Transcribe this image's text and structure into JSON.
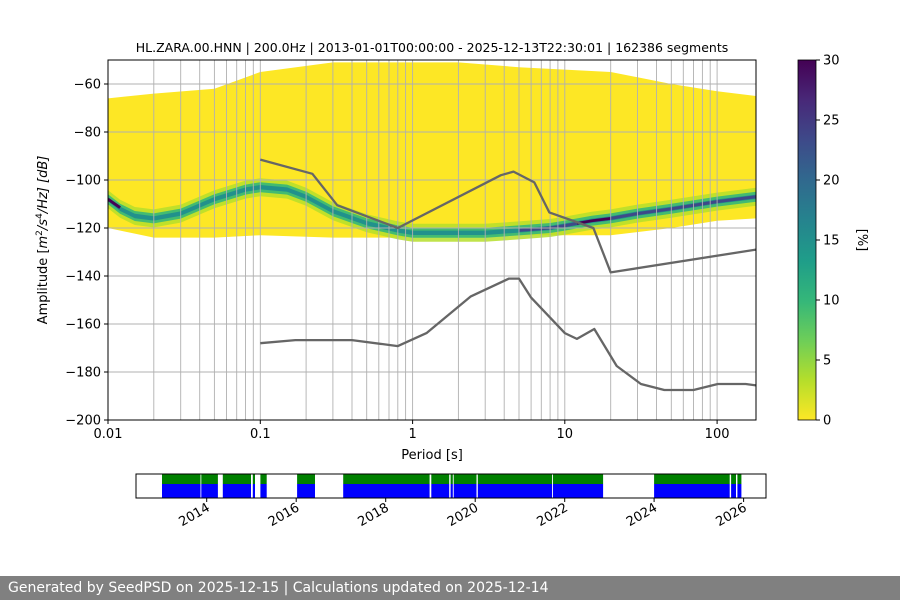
{
  "chart_data": [
    {
      "type": "heatmap",
      "title": "HL.ZARA.00.HNN | 200.0Hz | 2013-01-01T00:00:00 - 2025-12-13T22:30:01 | 162386 segments",
      "xlabel": "Period [s]",
      "ylabel": "Amplitude [m²/s⁴/Hz] [dB]",
      "ylabel_parts": {
        "pre": "Amplitude [",
        "m": "m",
        "two": "2",
        "s": "/s",
        "four": "4",
        "hz": "/Hz] [dB]"
      },
      "x_scale": "log",
      "xlim": [
        0.01,
        180
      ],
      "ylim": [
        -200,
        -50
      ],
      "x_ticks": [
        {
          "value": 0.01,
          "label": "0.01"
        },
        {
          "value": 0.1,
          "label": "0.1"
        },
        {
          "value": 1,
          "label": "1"
        },
        {
          "value": 10,
          "label": "10"
        },
        {
          "value": 100,
          "label": "100"
        }
      ],
      "y_ticks": [
        {
          "value": -60,
          "label": "−60"
        },
        {
          "value": -80,
          "label": "−80"
        },
        {
          "value": -100,
          "label": "−100"
        },
        {
          "value": -120,
          "label": "−120"
        },
        {
          "value": -140,
          "label": "−140"
        },
        {
          "value": -160,
          "label": "−160"
        },
        {
          "value": -180,
          "label": "−180"
        },
        {
          "value": -200,
          "label": "−200"
        }
      ],
      "grid_periods": [
        0.02,
        0.03,
        0.04,
        0.05,
        0.06,
        0.07,
        0.08,
        0.09,
        0.1,
        0.2,
        0.3,
        0.4,
        0.5,
        0.6,
        0.7,
        0.8,
        0.9,
        1,
        2,
        3,
        4,
        5,
        6,
        7,
        8,
        9,
        10,
        20,
        30,
        40,
        50,
        60,
        70,
        80,
        90,
        100
      ],
      "density_envelope": {
        "periods": [
          0.01,
          0.02,
          0.05,
          0.1,
          0.3,
          0.8,
          2,
          5,
          10,
          20,
          50,
          100,
          180
        ],
        "upper_db": [
          -66,
          -64,
          -62,
          -55,
          -51,
          -51,
          -51,
          -53,
          -54,
          -55,
          -60,
          -63,
          -65
        ],
        "lower_db": [
          -120,
          -124,
          -124,
          -123,
          -124,
          -124,
          -123,
          -123,
          -123,
          -123,
          -120,
          -117,
          -116
        ]
      },
      "mode_curve": {
        "periods": [
          0.01,
          0.012,
          0.015,
          0.02,
          0.03,
          0.05,
          0.08,
          0.1,
          0.15,
          0.2,
          0.3,
          0.5,
          0.8,
          1,
          2,
          3,
          5,
          8,
          10,
          15,
          20,
          30,
          50,
          100,
          180
        ],
        "db": [
          -108,
          -112,
          -115,
          -116,
          -114,
          -108,
          -104,
          -103,
          -104,
          -107,
          -113,
          -118,
          -121,
          -122,
          -122,
          -122,
          -121,
          -120,
          -119,
          -117,
          -116,
          -114,
          -112,
          -109,
          -107
        ]
      },
      "colorbar": {
        "label": "[%]",
        "min": 0,
        "max": 30,
        "ticks": [
          0,
          5,
          10,
          15,
          20,
          25,
          30
        ],
        "colors": [
          "#fde725",
          "#b5de2b",
          "#6ece58",
          "#35b779",
          "#1f9e89",
          "#26828e",
          "#31688e",
          "#3e4989",
          "#482878",
          "#440154"
        ]
      },
      "noise_models": [
        {
          "name": "high",
          "periods": [
            0.1,
            0.22,
            0.32,
            0.8,
            3.8,
            4.6,
            6.3,
            7.9,
            15.4,
            20,
            180
          ],
          "db": [
            -91.5,
            -97.4,
            -110.5,
            -120,
            -98,
            -96.5,
            -101,
            -113.5,
            -120,
            -138.5,
            -129
          ]
        },
        {
          "name": "low",
          "periods": [
            0.1,
            0.17,
            0.4,
            0.8,
            1.24,
            2.4,
            4.3,
            5,
            6,
            10,
            12,
            15.6,
            21.9,
            31.6,
            45,
            70,
            101,
            154,
            180
          ],
          "db": [
            -168,
            -166.7,
            -166.7,
            -169.2,
            -163.7,
            -148.6,
            -141.1,
            -141.1,
            -149,
            -163.8,
            -166.2,
            -162.1,
            -177.5,
            -185,
            -187.5,
            -187.5,
            -185,
            -185,
            -185.6
          ]
        }
      ],
      "line_color": "#666666"
    },
    {
      "type": "timeline",
      "x_start_year": 2012.42,
      "x_end_year": 2026.5,
      "tick_years": [
        2014,
        2016,
        2018,
        2020,
        2022,
        2024,
        2026
      ],
      "tick_labels": [
        "2014",
        "2016",
        "2018",
        "2020",
        "2022",
        "2024",
        "2026"
      ],
      "colors": {
        "available": "#008000",
        "processed": "#0000ff"
      },
      "intervals": [
        [
          2013.0,
          2013.86
        ],
        [
          2013.88,
          2014.25
        ],
        [
          2014.36,
          2014.99
        ],
        [
          2015.03,
          2015.08
        ],
        [
          2015.2,
          2015.34
        ],
        [
          2016.02,
          2016.42
        ],
        [
          2017.05,
          2018.98
        ],
        [
          2019.02,
          2019.42
        ],
        [
          2019.45,
          2019.5
        ],
        [
          2019.52,
          2020.03
        ],
        [
          2020.06,
          2021.72
        ],
        [
          2021.74,
          2022.86
        ],
        [
          2024.0,
          2025.69
        ],
        [
          2025.72,
          2025.83
        ],
        [
          2025.86,
          2025.95
        ]
      ]
    }
  ],
  "footer": {
    "text": "Generated by SeedPSD on 2025-12-15 | Calculations updated on 2025-12-14"
  }
}
